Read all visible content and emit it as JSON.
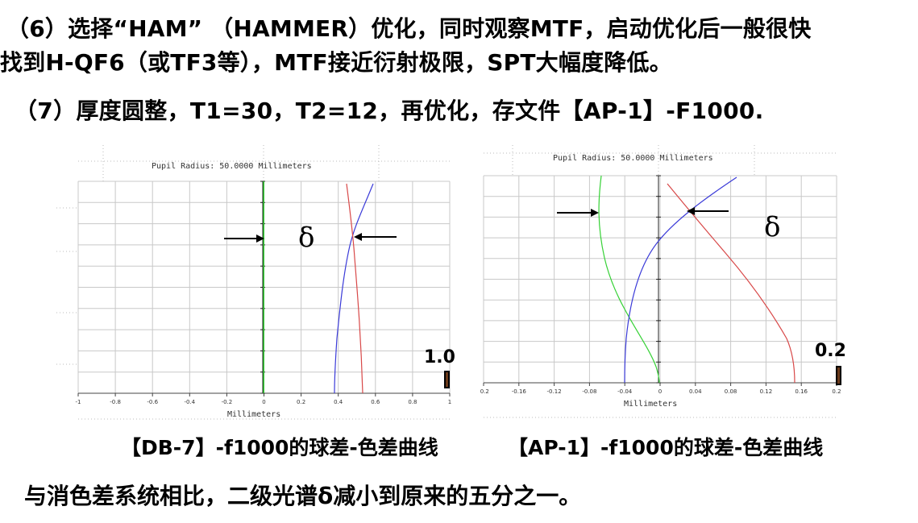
{
  "text": {
    "step6_line1": "（6）选择“HAM”  （HAMMER）优化，同时观察MTF，启动优化后一般很快",
    "step6_line2": "找到H-QF6（或TF3等），MTF接近衍射极限，SPT大幅度降低。",
    "step7": "（7）厚度圆整，T1=30，T2=12，再优化，存文件【AP-1】-F1000.",
    "caption_left": "【DB-7】-f1000的球差-色差曲线",
    "caption_right": "【AP-1】-f1000的球差-色差曲线",
    "conclusion": "与消色差系统相比，二级光谱δ减小到原来的五分之一。"
  },
  "plots": {
    "left": {
      "title": "Pupil Radius: 50.0000 Millimeters",
      "xlabel": "Millimeters",
      "ticks": [
        "-1",
        "-0.8",
        "-0.6",
        "-0.4",
        "-0.2",
        "0",
        "0.2",
        "0.4",
        "0.6",
        "0.8",
        "1"
      ],
      "xlim": [
        -1,
        1
      ],
      "scale_label": "1.0",
      "delta_label": "δ"
    },
    "right": {
      "title": "Pupil Radius: 50.0000 Millimeters",
      "xlabel": "Millimeters",
      "ticks": [
        "-0.2",
        "-0.16",
        "-0.12",
        "-0.08",
        "-0.04",
        "0",
        "0.04",
        "0.08",
        "0.12",
        "0.16",
        "0.2"
      ],
      "xlim": [
        -0.2,
        0.2
      ],
      "scale_label": "0.2",
      "delta_label": "δ"
    }
  },
  "colors": {
    "green_curve": "#35d135",
    "blue_curve": "#3a3ad8",
    "red_curve": "#d84848",
    "grid": "#c8c8c8",
    "scale_bar": "#000000"
  }
}
